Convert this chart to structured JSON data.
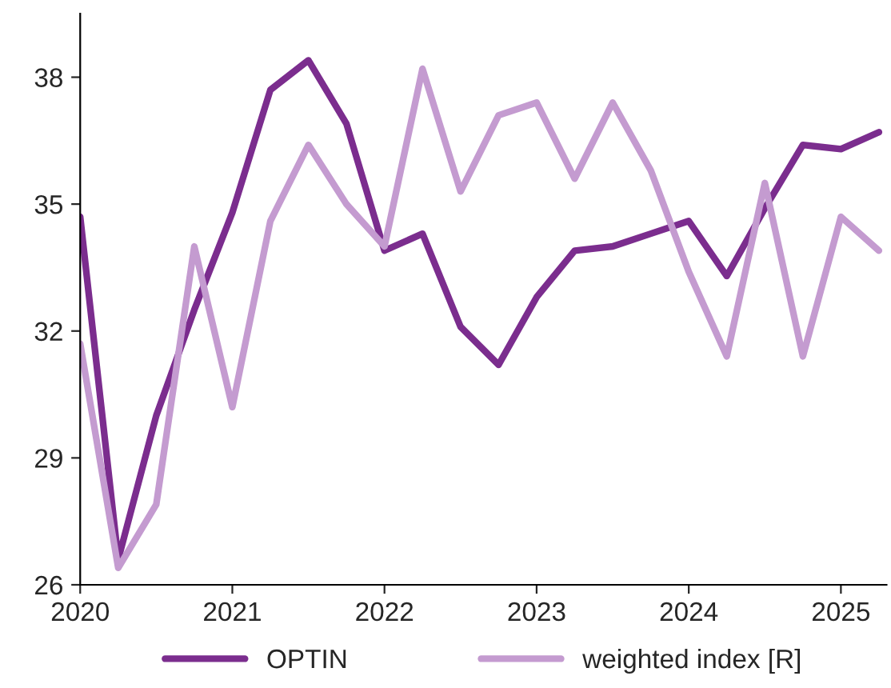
{
  "chart_data": {
    "type": "line",
    "x": [
      2020.0,
      2020.25,
      2020.5,
      2020.75,
      2021.0,
      2021.25,
      2021.5,
      2021.75,
      2022.0,
      2022.25,
      2022.5,
      2022.75,
      2023.0,
      2023.25,
      2023.5,
      2023.75,
      2024.0,
      2024.25,
      2024.5,
      2024.75,
      2025.0,
      2025.25
    ],
    "series": [
      {
        "name": "OPTIN",
        "color": "#7b2d8e",
        "values": [
          34.7,
          26.6,
          30.0,
          32.5,
          34.8,
          37.7,
          38.4,
          36.9,
          33.9,
          34.3,
          32.1,
          31.2,
          32.8,
          33.9,
          34.0,
          34.3,
          34.6,
          33.3,
          34.9,
          36.4,
          36.3,
          36.7
        ]
      },
      {
        "name": "weighted index [R]",
        "color": "#c49bd0",
        "values": [
          31.7,
          26.4,
          27.9,
          34.0,
          30.2,
          34.6,
          36.4,
          35.0,
          34.0,
          38.2,
          35.3,
          37.1,
          37.4,
          35.6,
          37.4,
          35.8,
          33.4,
          31.4,
          35.5,
          31.4,
          34.7,
          33.9
        ]
      }
    ],
    "xlim": [
      2020,
      2025.3
    ],
    "xticks": [
      2020,
      2021,
      2022,
      2023,
      2024,
      2025
    ],
    "ylim": [
      26,
      39.5
    ],
    "yticks": [
      26,
      29,
      32,
      35,
      38
    ],
    "grid": false,
    "legend": "bottom",
    "marker": "none",
    "line_style": "solid"
  }
}
